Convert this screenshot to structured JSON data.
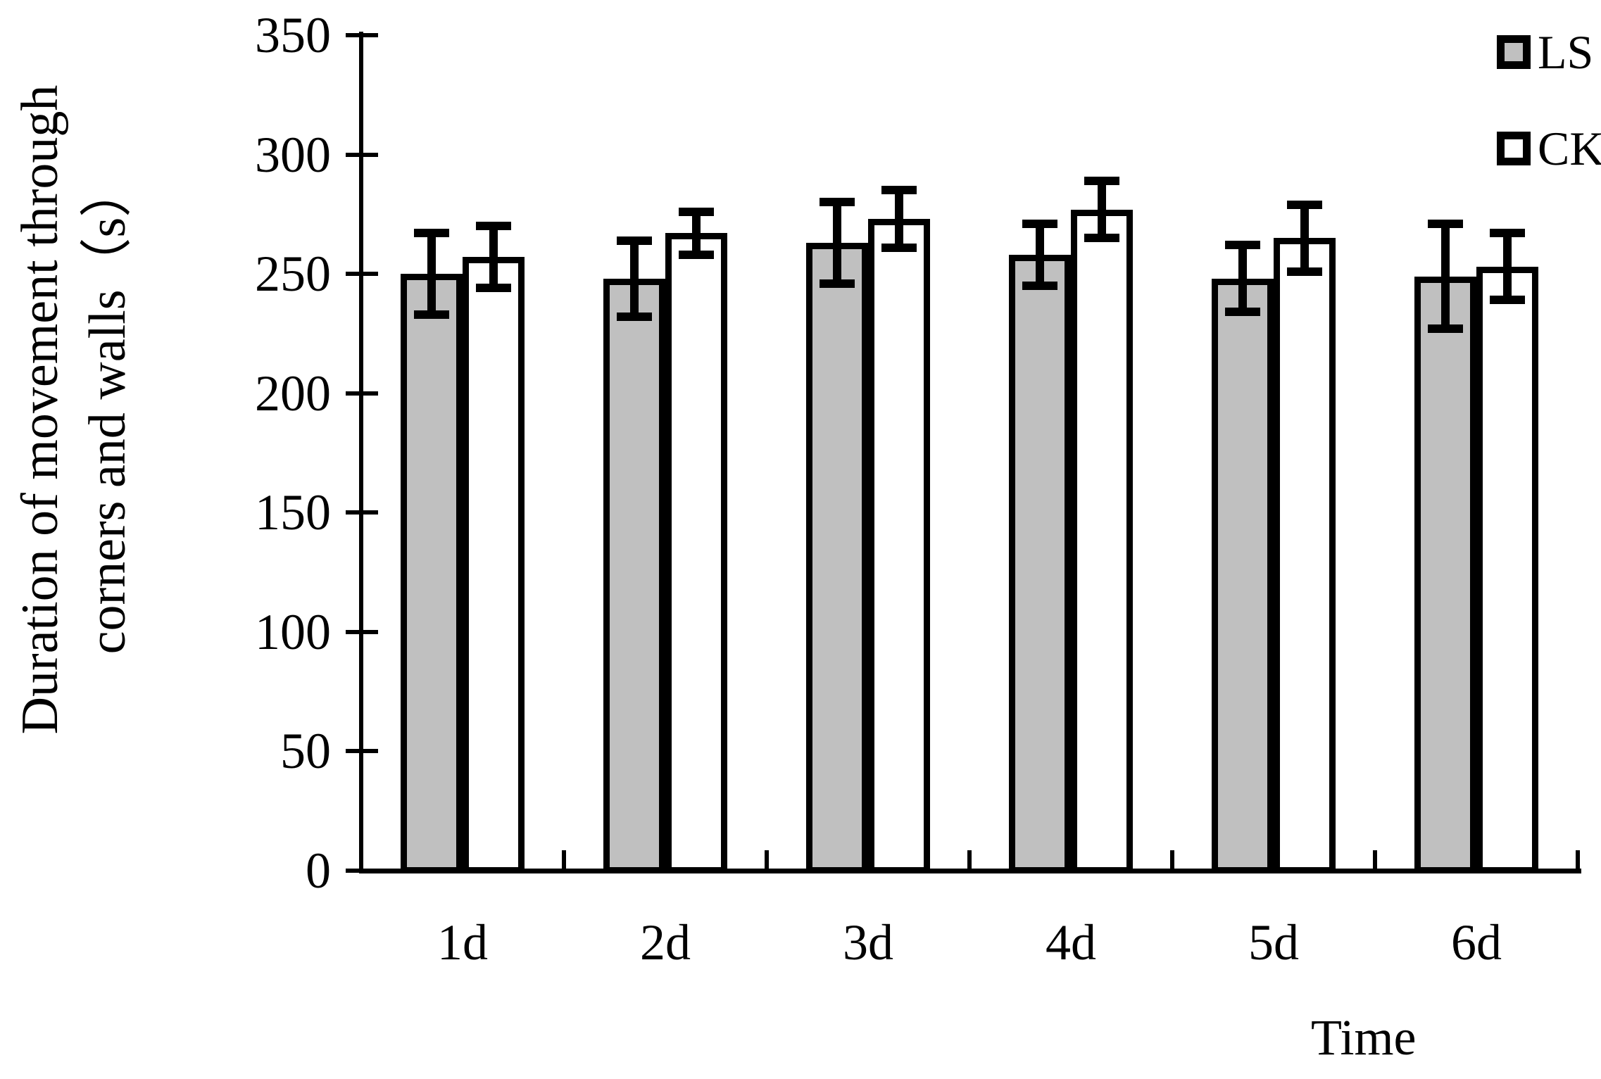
{
  "chart_data": {
    "type": "bar",
    "title": "",
    "categories": [
      "1d",
      "2d",
      "3d",
      "4d",
      "5d",
      "6d"
    ],
    "series": [
      {
        "name": "LS",
        "fill": "#c0c0c0",
        "values": [
          250,
          248,
          263,
          258,
          248,
          249
        ],
        "errors": [
          17,
          16,
          17,
          13,
          14,
          22
        ]
      },
      {
        "name": "CK",
        "fill": "#ffffff",
        "values": [
          257,
          267,
          273,
          277,
          265,
          253
        ],
        "errors": [
          13,
          9,
          12,
          12,
          14,
          14
        ]
      }
    ],
    "error_bars": true,
    "xlabel": "Time",
    "ylabel_lines": [
      "Duration of movement through",
      "corners and walls（s）"
    ],
    "ylim": [
      0,
      350
    ],
    "ytick_step": 50,
    "yticks": [
      0,
      50,
      100,
      150,
      200,
      250,
      300,
      350
    ],
    "legend": {
      "position": "top-right",
      "entries": [
        "LS",
        "CK"
      ]
    },
    "grid": false,
    "axis_color": "#000000",
    "bar_border_color": "#000000",
    "background_color": "#ffffff"
  }
}
